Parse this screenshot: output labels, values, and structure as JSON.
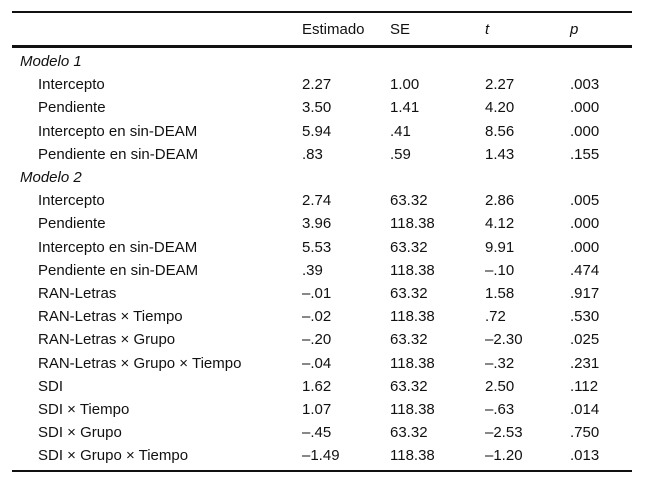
{
  "table": {
    "headers": [
      {
        "label": "Estimado",
        "italic": false
      },
      {
        "label": "SE",
        "italic": false
      },
      {
        "label": "t",
        "italic": true
      },
      {
        "label": "p",
        "italic": true
      }
    ],
    "sections": [
      {
        "title": "Modelo 1",
        "rows": [
          {
            "label": "Intercepto",
            "estimado": "2.27",
            "se": "1.00",
            "t": "2.27",
            "p": ".003"
          },
          {
            "label": "Pendiente",
            "estimado": "3.50",
            "se": "1.41",
            "t": "4.20",
            "p": ".000"
          },
          {
            "label": "Intercepto en sin-DEAM",
            "estimado": "5.94",
            "se": ".41",
            "t": "8.56",
            "p": ".000"
          },
          {
            "label": "Pendiente en sin-DEAM",
            "estimado": ".83",
            "se": ".59",
            "t": "1.43",
            "p": ".155"
          }
        ]
      },
      {
        "title": "Modelo 2",
        "rows": [
          {
            "label": "Intercepto",
            "estimado": "2.74",
            "se": "63.32",
            "t": "2.86",
            "p": ".005"
          },
          {
            "label": "Pendiente",
            "estimado": "3.96",
            "se": "118.38",
            "t": "4.12",
            "p": ".000"
          },
          {
            "label": "Intercepto en sin-DEAM",
            "estimado": "5.53",
            "se": "63.32",
            "t": "9.91",
            "p": ".000"
          },
          {
            "label": "Pendiente en sin-DEAM",
            "estimado": ".39",
            "se": "118.38",
            "t": "–.10",
            "p": ".474"
          },
          {
            "label": "RAN-Letras",
            "estimado": "–.01",
            "se": "63.32",
            "t": "1.58",
            "p": ".917"
          },
          {
            "label": "RAN-Letras × Tiempo",
            "estimado": "–.02",
            "se": "118.38",
            "t": ".72",
            "p": ".530"
          },
          {
            "label": "RAN-Letras × Grupo",
            "estimado": "–.20",
            "se": "63.32",
            "t": "–2.30",
            "p": ".025"
          },
          {
            "label": "RAN-Letras × Grupo × Tiempo",
            "estimado": "–.04",
            "se": "118.38",
            "t": "–.32",
            "p": ".231"
          },
          {
            "label": "SDI",
            "estimado": "1.62",
            "se": "63.32",
            "t": "2.50",
            "p": ".112"
          },
          {
            "label": "SDI × Tiempo",
            "estimado": "1.07",
            "se": "118.38",
            "t": "–.63",
            "p": ".014"
          },
          {
            "label": "SDI × Grupo",
            "estimado": "–.45",
            "se": "63.32",
            "t": "–2.53",
            "p": ".750"
          },
          {
            "label": "SDI × Grupo × Tiempo",
            "estimado": "–1.49",
            "se": "118.38",
            "t": "–1.20",
            "p": ".013"
          }
        ]
      }
    ]
  },
  "chart_data": {
    "type": "table",
    "columns": [
      "",
      "Estimado",
      "SE",
      "t",
      "p"
    ],
    "rows": [
      [
        "Modelo 1",
        "",
        "",
        "",
        ""
      ],
      [
        "Intercepto",
        "2.27",
        "1.00",
        "2.27",
        ".003"
      ],
      [
        "Pendiente",
        "3.50",
        "1.41",
        "4.20",
        ".000"
      ],
      [
        "Intercepto en sin-DEAM",
        "5.94",
        ".41",
        "8.56",
        ".000"
      ],
      [
        "Pendiente en sin-DEAM",
        ".83",
        ".59",
        "1.43",
        ".155"
      ],
      [
        "Modelo 2",
        "",
        "",
        "",
        ""
      ],
      [
        "Intercepto",
        "2.74",
        "63.32",
        "2.86",
        ".005"
      ],
      [
        "Pendiente",
        "3.96",
        "118.38",
        "4.12",
        ".000"
      ],
      [
        "Intercepto en sin-DEAM",
        "5.53",
        "63.32",
        "9.91",
        ".000"
      ],
      [
        "Pendiente en sin-DEAM",
        ".39",
        "118.38",
        "–.10",
        ".474"
      ],
      [
        "RAN-Letras",
        "–.01",
        "63.32",
        "1.58",
        ".917"
      ],
      [
        "RAN-Letras × Tiempo",
        "–.02",
        "118.38",
        ".72",
        ".530"
      ],
      [
        "RAN-Letras × Grupo",
        "–.20",
        "63.32",
        "–2.30",
        ".025"
      ],
      [
        "RAN-Letras × Grupo × Tiempo",
        "–.04",
        "118.38",
        "–.32",
        ".231"
      ],
      [
        "SDI",
        "1.62",
        "63.32",
        "2.50",
        ".112"
      ],
      [
        "SDI × Tiempo",
        "1.07",
        "118.38",
        "–.63",
        ".014"
      ],
      [
        "SDI × Grupo",
        "–.45",
        "63.32",
        "–2.53",
        ".750"
      ],
      [
        "SDI × Grupo × Tiempo",
        "–1.49",
        "118.38",
        "–1.20",
        ".013"
      ]
    ]
  }
}
